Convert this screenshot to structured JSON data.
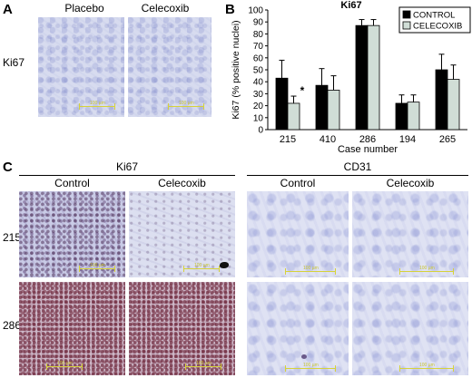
{
  "panel_a": {
    "letter": "A",
    "col_labels": [
      "Placebo",
      "Celecoxib"
    ],
    "row_label": "Ki67",
    "scale_text": "100 µm"
  },
  "panel_b": {
    "letter": "B"
  },
  "chart_data": {
    "type": "bar",
    "title": "Ki67",
    "xlabel": "Case number",
    "ylabel": "Ki67 (% positive nuclei)",
    "ylim": [
      0,
      100
    ],
    "yticks": [
      0,
      10,
      20,
      30,
      40,
      50,
      60,
      70,
      80,
      90,
      100
    ],
    "categories": [
      "215",
      "410",
      "286",
      "194",
      "265"
    ],
    "series": [
      {
        "name": "CONTROL",
        "color": "#000000",
        "values": [
          43,
          37,
          87,
          22,
          50
        ],
        "errors": [
          15,
          14,
          5,
          7,
          13
        ]
      },
      {
        "name": "CELECOXIB",
        "color": "#d0ddd6",
        "values": [
          22,
          33,
          87,
          23,
          42
        ],
        "errors": [
          6,
          12,
          5,
          6,
          12
        ]
      }
    ],
    "annotations": [
      {
        "category": "215",
        "text": "*"
      }
    ],
    "legend": "top-right"
  },
  "panel_c": {
    "letter": "C",
    "group_ki67": "Ki67",
    "group_cd31": "CD31",
    "col_labels": [
      "Control",
      "Celecoxib",
      "Control",
      "Celecoxib"
    ],
    "row_labels": [
      "215",
      "286"
    ],
    "scale_text": "100 µm"
  },
  "colors": {
    "he_light": "#d7dbef",
    "ki67_positive": "#7a3a55",
    "scalebar": "#d6d23a"
  }
}
